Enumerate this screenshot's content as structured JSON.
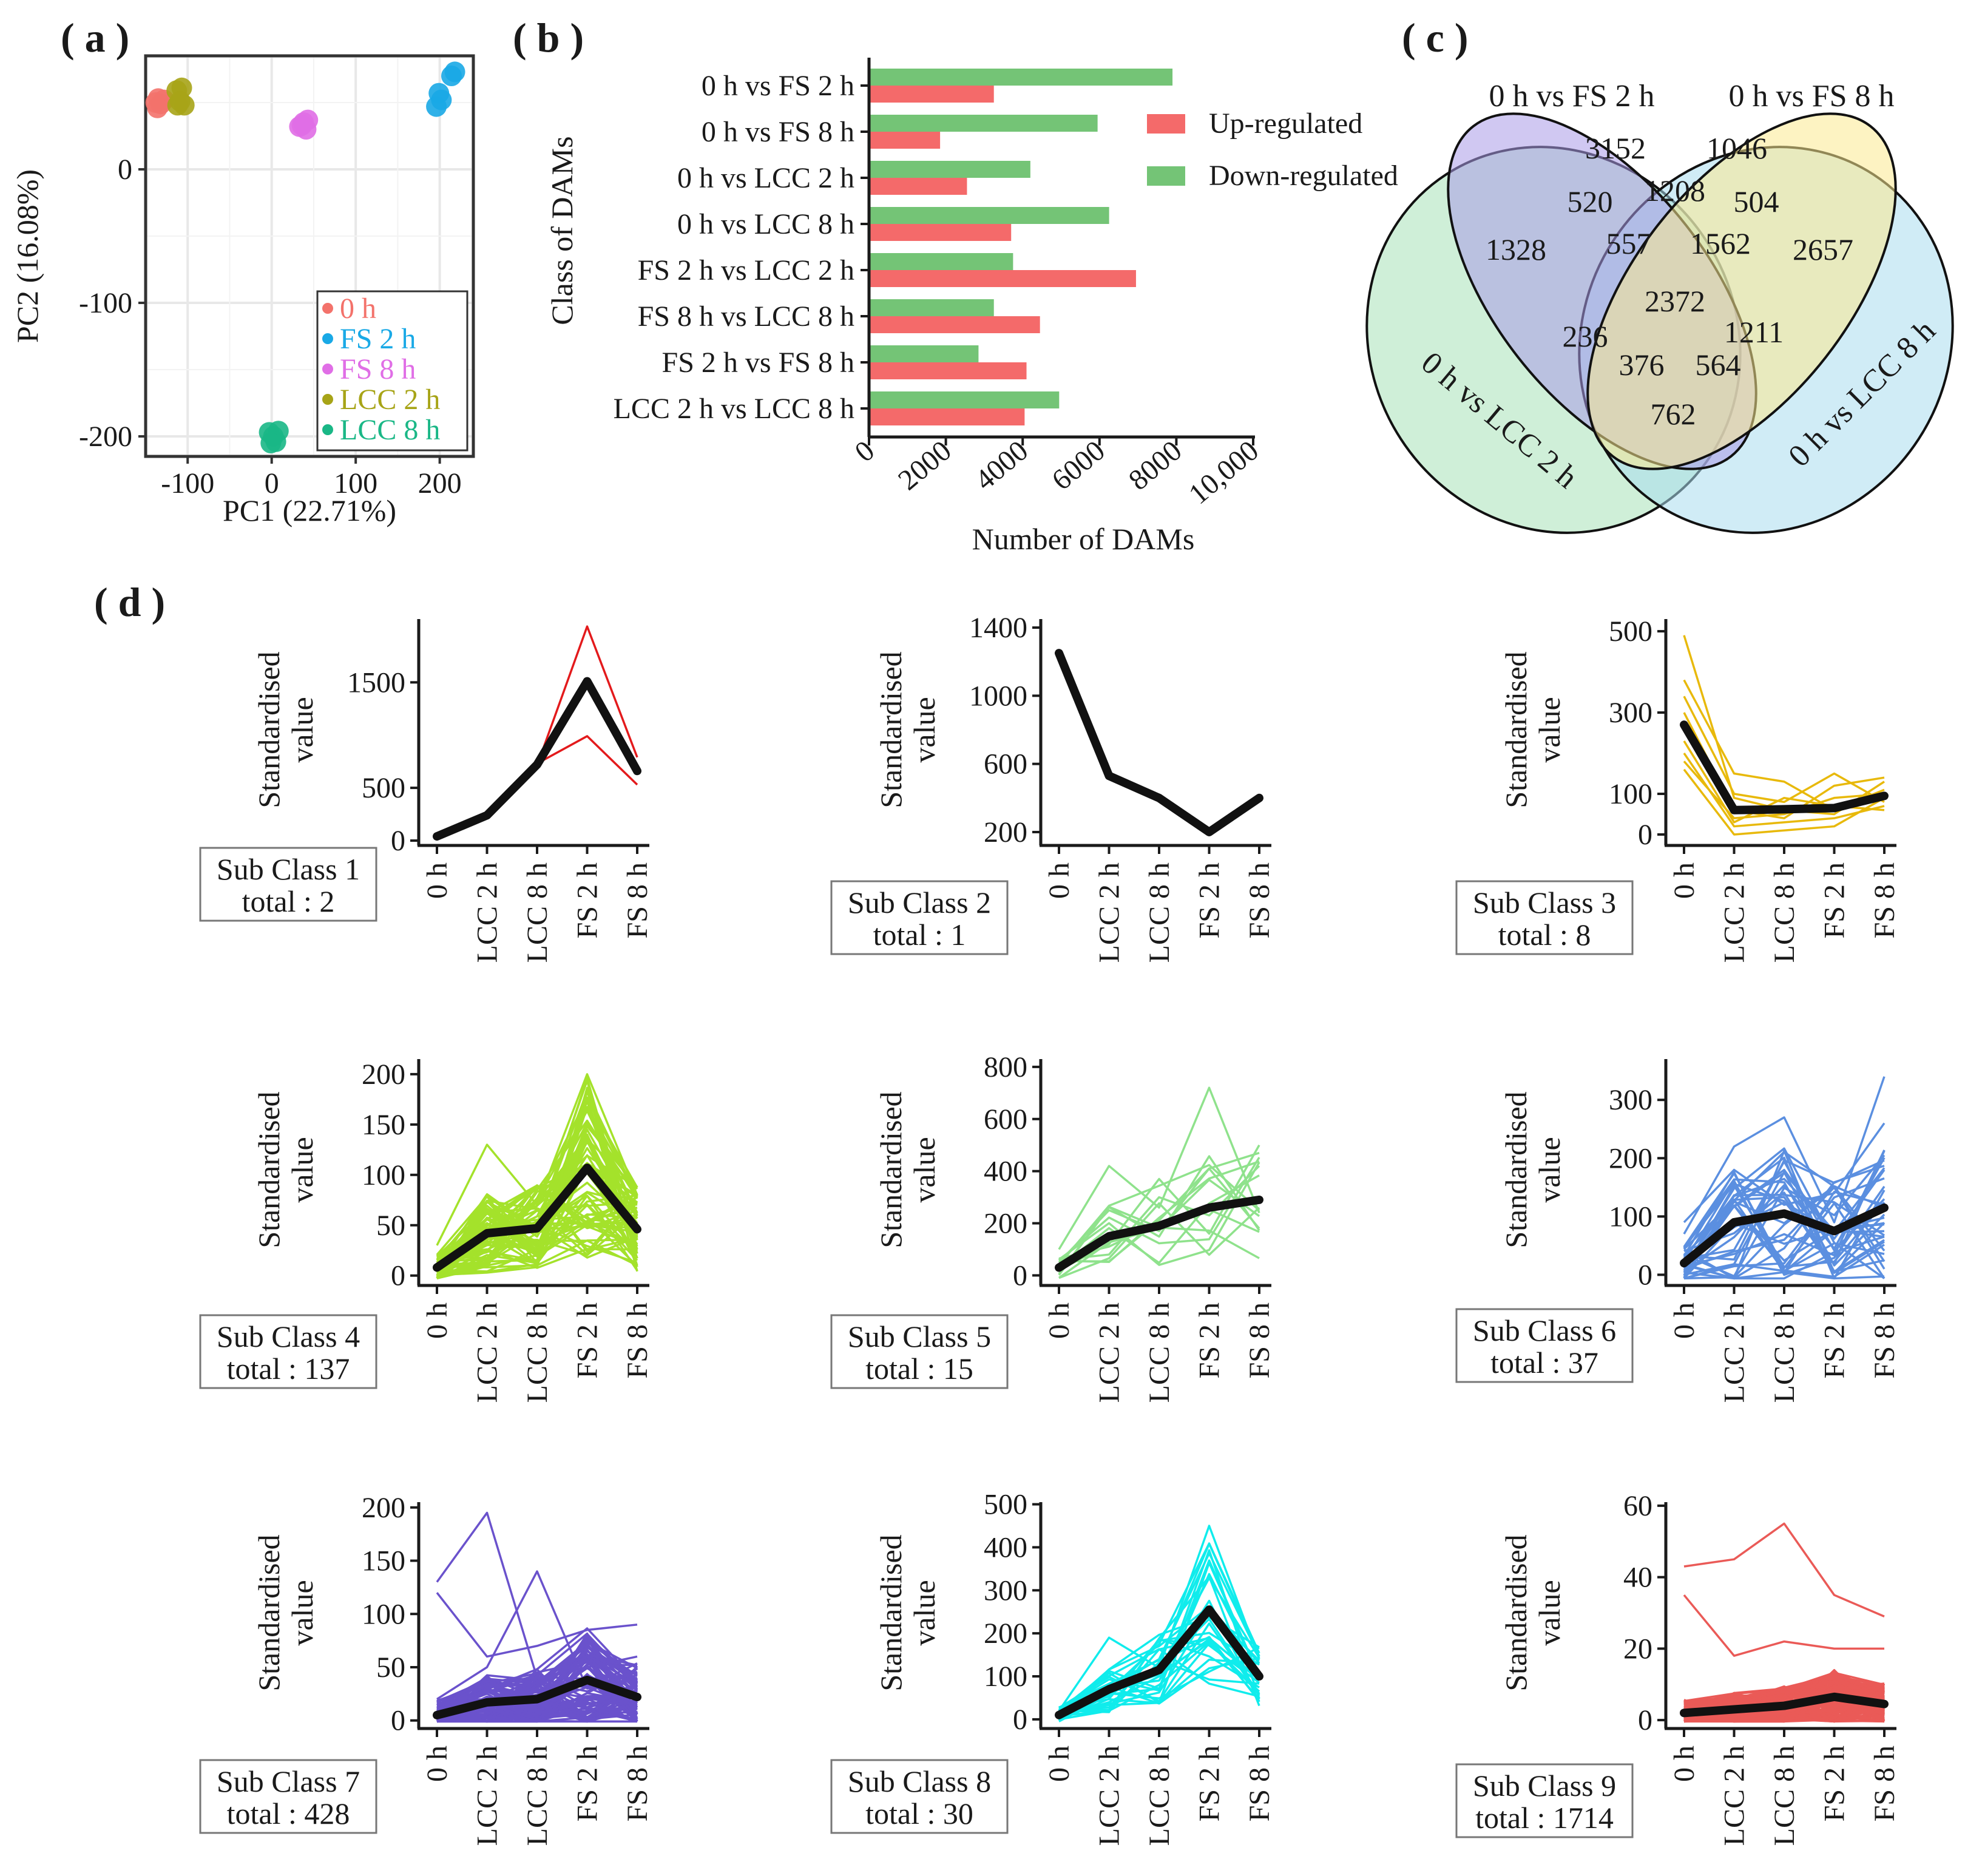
{
  "labels": {
    "a": "( a )",
    "b": "( b )",
    "c": "( c )",
    "d": "( d )"
  },
  "chart_data": [
    {
      "type": "scatter",
      "panel": "a",
      "xlabel": "PC1 (22.71%)",
      "ylabel": "PC2 (16.08%)",
      "xlim": [
        -150,
        240
      ],
      "ylim": [
        -215,
        85
      ],
      "xticks": [
        -100,
        0,
        100,
        200
      ],
      "yticks": [
        0,
        -100,
        -200
      ],
      "grid": true,
      "legend_position": "bottom-right",
      "series": [
        {
          "name": "0 h",
          "color": "#f3726b",
          "points": [
            [
              -138,
              50
            ],
            [
              -135,
              53
            ],
            [
              -132,
              49
            ],
            [
              -128,
              52
            ],
            [
              -136,
              46
            ]
          ]
        },
        {
          "name": "FS 2 h",
          "color": "#19a9e6",
          "points": [
            [
              196,
              47
            ],
            [
              199,
              57
            ],
            [
              202,
              52
            ],
            [
              218,
              73
            ],
            [
              214,
              70
            ]
          ]
        },
        {
          "name": "FS 8 h",
          "color": "#e06ee6",
          "points": [
            [
              33,
              32
            ],
            [
              38,
              35
            ],
            [
              43,
              37
            ],
            [
              41,
              30
            ],
            [
              36,
              33
            ]
          ]
        },
        {
          "name": "LCC 2 h",
          "color": "#a7a417",
          "points": [
            [
              -113,
              59
            ],
            [
              -107,
              61
            ],
            [
              -112,
              48
            ],
            [
              -104,
              48
            ],
            [
              -109,
              51
            ]
          ]
        },
        {
          "name": "LCC 8 h",
          "color": "#1ab786",
          "points": [
            [
              -3,
              -197
            ],
            [
              2,
              -200
            ],
            [
              8,
              -196
            ],
            [
              5,
              -204
            ],
            [
              -1,
              -205
            ]
          ]
        }
      ]
    },
    {
      "type": "bar",
      "orientation": "horizontal",
      "panel": "b",
      "categories": [
        "0 h vs FS 2 h",
        "0 h vs FS 8 h",
        "0 h vs LCC 2 h",
        "0 h vs LCC 8 h",
        "FS 2 h vs LCC 2 h",
        "FS 8 h vs LCC 8 h",
        "FS 2 h vs FS 8 h",
        "LCC 2 h vs LCC 8 h"
      ],
      "series": [
        {
          "name": "Down-regulated",
          "color": "#74c476",
          "values": [
            7900,
            5950,
            4200,
            6250,
            3750,
            3250,
            2850,
            4950
          ]
        },
        {
          "name": "Up-regulated",
          "color": "#f46a6a",
          "values": [
            3250,
            1850,
            2550,
            3700,
            6950,
            4450,
            4100,
            4050
          ]
        }
      ],
      "legend_order": [
        "Up-regulated",
        "Down-regulated"
      ],
      "xlabel": "Number of DAMs",
      "ylabel": "Class of DAMs",
      "xlim": [
        0,
        10000
      ],
      "xticks": [
        "0",
        "2000",
        "4000",
        "6000",
        "8000",
        "10,000"
      ]
    },
    {
      "type": "venn",
      "panel": "c",
      "sets": [
        {
          "name": "0 h vs FS 2 h",
          "color": "#a99ae8"
        },
        {
          "name": "0 h vs FS 8 h",
          "color": "#fbe98f"
        },
        {
          "name": "0 h vs LCC 2 h",
          "color": "#a8e2b8"
        },
        {
          "name": "0 h vs LCC 8 h",
          "color": "#a9ddef"
        }
      ],
      "regions": {
        "FS2": 3152,
        "FS8": 1046,
        "LCC2": 1328,
        "LCC8": 2657,
        "FS2_FS8": 1208,
        "FS2_LCC2": 520,
        "FS8_LCC8": 504,
        "LCC2_LCC8": 762,
        "FS2_FS8_LCC2": 557,
        "FS2_FS8_LCC8": 1562,
        "FS2_LCC8": 1211,
        "FS8_LCC2": 236,
        "FS2_LCC2_LCC8": 564,
        "FS8_LCC2_LCC8": 376,
        "all": 2372
      }
    },
    {
      "type": "line",
      "panel": "d",
      "x": [
        "0 h",
        "LCC 2 h",
        "LCC 8 h",
        "FS 2 h",
        "FS 8 h"
      ],
      "ylabel": "Standardised value",
      "subclasses": [
        {
          "name": "Sub Class 1",
          "total": "total : 2",
          "color": "#e31a1c",
          "ylim": [
            0,
            2100
          ],
          "yticks": [
            0,
            500,
            1500
          ],
          "mean": [
            40,
            240,
            720,
            1510,
            660
          ],
          "members": [
            [
              35,
              260,
              710,
              2030,
              790
            ],
            [
              45,
              220,
              730,
              990,
              530
            ]
          ],
          "extra": 0,
          "spread": 0
        },
        {
          "name": "Sub Class 2",
          "total": "total : 1",
          "color": "#1a1a1a",
          "ylim": [
            150,
            1450
          ],
          "yticks": [
            200,
            600,
            1000,
            1400
          ],
          "mean": [
            1250,
            530,
            400,
            200,
            400
          ],
          "members": [],
          "extra": 0,
          "spread": 0
        },
        {
          "name": "Sub Class 3",
          "total": "total : 8",
          "color": "#e8b90b",
          "ylim": [
            -15,
            530
          ],
          "yticks": [
            0,
            100,
            300,
            500
          ],
          "mean": [
            270,
            60,
            62,
            65,
            95
          ],
          "members": [
            [
              490,
              90,
              60,
              50,
              130
            ],
            [
              380,
              150,
              130,
              60,
              110
            ],
            [
              340,
              100,
              80,
              150,
              80
            ],
            [
              200,
              20,
              30,
              40,
              70
            ],
            [
              160,
              0,
              10,
              20,
              90
            ],
            [
              300,
              60,
              40,
              120,
              140
            ],
            [
              230,
              30,
              90,
              70,
              60
            ],
            [
              180,
              40,
              50,
              90,
              100
            ]
          ],
          "extra": 0,
          "spread": 0
        },
        {
          "name": "Sub Class 4",
          "total": "total : 137",
          "color": "#a4e22b",
          "ylim": [
            -5,
            215
          ],
          "yticks": [
            0,
            50,
            100,
            150,
            200
          ],
          "mean": [
            8,
            42,
            47,
            107,
            46
          ],
          "members": [
            [
              30,
              130,
              70,
              200,
              80
            ],
            [
              0,
              10,
              20,
              70,
              15
            ]
          ],
          "extra": 70,
          "spread": 0.55
        },
        {
          "name": "Sub Class 5",
          "total": "total : 15",
          "color": "#8fe28c",
          "ylim": [
            -20,
            830
          ],
          "yticks": [
            0,
            200,
            400,
            600,
            800
          ],
          "mean": [
            30,
            150,
            190,
            260,
            290
          ],
          "members": [
            [
              100,
              420,
              260,
              720,
              240
            ],
            [
              20,
              120,
              370,
              160,
              500
            ],
            [
              50,
              250,
              170,
              410,
              180
            ],
            [
              60,
              80,
              300,
              230,
              420
            ]
          ],
          "extra": 11,
          "spread": 0.5
        },
        {
          "name": "Sub Class 6",
          "total": "total : 37",
          "color": "#5b8fe0",
          "ylim": [
            -10,
            370
          ],
          "yticks": [
            0,
            100,
            200,
            300
          ],
          "mean": [
            20,
            90,
            105,
            75,
            115
          ],
          "members": [
            [
              70,
              220,
              270,
              90,
              340
            ],
            [
              10,
              40,
              60,
              150,
              10
            ],
            [
              90,
              180,
              120,
              140,
              260
            ]
          ],
          "extra": 34,
          "spread": 0.7
        },
        {
          "name": "Sub Class 7",
          "total": "total : 428",
          "color": "#6a52cc",
          "ylim": [
            -3,
            205
          ],
          "yticks": [
            0,
            50,
            100,
            150,
            200
          ],
          "mean": [
            5,
            17,
            20,
            38,
            22
          ],
          "members": [
            [
              130,
              195,
              40,
              50,
              60
            ],
            [
              20,
              50,
              140,
              30,
              40
            ],
            [
              120,
              60,
              70,
              85,
              90
            ]
          ],
          "extra": 90,
          "spread": 0.75
        },
        {
          "name": "Sub Class 8",
          "total": "total : 30",
          "color": "#10ecec",
          "ylim": [
            -10,
            505
          ],
          "yticks": [
            0,
            100,
            200,
            300,
            400,
            500
          ],
          "mean": [
            10,
            70,
            115,
            255,
            100
          ],
          "members": [
            [
              20,
              190,
              120,
              450,
              140
            ],
            [
              0,
              20,
              80,
              180,
              60
            ]
          ],
          "extra": 28,
          "spread": 0.45
        },
        {
          "name": "Sub Class 9",
          "total": "total : 1714",
          "color": "#ea5a57",
          "ylim": [
            -1,
            61
          ],
          "yticks": [
            0,
            20,
            40,
            60
          ],
          "mean": [
            2,
            3,
            4,
            6.5,
            4.5
          ],
          "members": [
            [
              43,
              45,
              55,
              35,
              29
            ],
            [
              35,
              18,
              22,
              20,
              20
            ]
          ],
          "extra": 140,
          "spread": 0.6
        }
      ]
    }
  ]
}
